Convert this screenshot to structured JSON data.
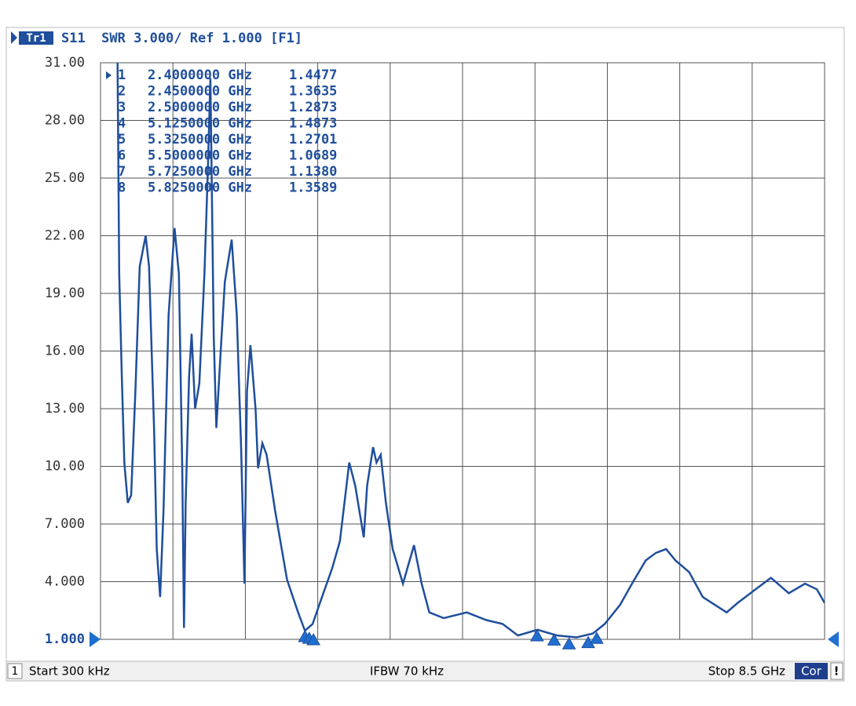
{
  "chart_data": {
    "type": "line",
    "header": {
      "trace": "Tr1",
      "text": "S11  SWR 3.000/ Ref 1.000 [F1]"
    },
    "footer": {
      "channel": "1",
      "start": "Start 300 kHz",
      "ifbw": "IFBW 70 kHz",
      "stop": "Stop 8.5 GHz",
      "cor": "Cor",
      "alert": "!"
    },
    "xlim": [
      0.0003,
      8.5
    ],
    "ylim": [
      1,
      31
    ],
    "yticks": [
      {
        "value": 1,
        "label": "1.000"
      },
      {
        "value": 4,
        "label": "4.000"
      },
      {
        "value": 7,
        "label": "7.000"
      },
      {
        "value": 10,
        "label": "10.00"
      },
      {
        "value": 13,
        "label": "13.00"
      },
      {
        "value": 16,
        "label": "16.00"
      },
      {
        "value": 19,
        "label": "19.00"
      },
      {
        "value": 22,
        "label": "22.00"
      },
      {
        "value": 25,
        "label": "25.00"
      },
      {
        "value": 28,
        "label": "28.00"
      },
      {
        "value": 31,
        "label": "31.00"
      }
    ],
    "grid": true,
    "color": "#1f4e9c",
    "series": [
      {
        "name": "S11",
        "color": "#1f4e9c",
        "x": [
          0.2,
          0.22,
          0.25,
          0.28,
          0.32,
          0.36,
          0.41,
          0.46,
          0.53,
          0.57,
          0.63,
          0.66,
          0.7,
          0.74,
          0.8,
          0.87,
          0.92,
          0.96,
          0.98,
          1.0,
          1.04,
          1.07,
          1.11,
          1.16,
          1.22,
          1.26,
          1.29,
          1.33,
          1.36,
          1.41,
          1.46,
          1.54,
          1.6,
          1.65,
          1.69,
          1.72,
          1.76,
          1.82,
          1.85,
          1.9,
          1.95,
          2.05,
          2.19,
          2.32,
          2.4,
          2.49,
          2.6,
          2.72,
          2.81,
          2.92,
          2.99,
          3.09,
          3.13,
          3.2,
          3.24,
          3.29,
          3.35,
          3.43,
          3.55,
          3.68,
          3.77,
          3.86,
          4.03,
          4.3,
          4.53,
          4.72,
          4.9,
          5.13,
          5.36,
          5.59,
          5.78,
          5.92,
          6.1,
          6.24,
          6.4,
          6.52,
          6.64,
          6.75,
          6.91,
          7.07,
          7.21,
          7.35,
          7.48,
          7.69,
          7.87,
          8.08,
          8.27,
          8.41,
          8.5
        ],
        "values": [
          31,
          20.0,
          14.7,
          10.2,
          8.1,
          8.5,
          13.9,
          20.4,
          22.0,
          20.4,
          11.8,
          5.7,
          3.2,
          7.7,
          17.9,
          22.4,
          20.0,
          9.8,
          1.6,
          8.1,
          14.7,
          16.9,
          13.0,
          14.3,
          20.0,
          25.3,
          30.2,
          16.7,
          12.0,
          15.9,
          19.6,
          21.8,
          17.9,
          11.0,
          3.9,
          13.9,
          16.3,
          13.0,
          9.9,
          11.2,
          10.6,
          7.7,
          4.1,
          2.4,
          1.45,
          1.8,
          3.2,
          4.7,
          6.1,
          10.2,
          9.0,
          6.3,
          9.0,
          11.0,
          10.2,
          10.6,
          8.1,
          5.7,
          3.9,
          5.9,
          3.9,
          2.4,
          2.1,
          2.4,
          2.0,
          1.8,
          1.2,
          1.5,
          1.2,
          1.1,
          1.3,
          1.8,
          2.8,
          3.9,
          5.1,
          5.5,
          5.7,
          5.1,
          4.5,
          3.2,
          2.8,
          2.4,
          2.9,
          3.6,
          4.2,
          3.4,
          3.9,
          3.6,
          2.9
        ]
      }
    ],
    "markers": [
      {
        "name": "1",
        "x": 2.4,
        "x_label": "2.4000000 GHz",
        "value": 1.4477
      },
      {
        "name": "2",
        "x": 2.45,
        "x_label": "2.4500000 GHz",
        "value": 1.3635
      },
      {
        "name": "3",
        "x": 2.5,
        "x_label": "2.5000000 GHz",
        "value": 1.2873
      },
      {
        "name": "4",
        "x": 5.125,
        "x_label": "5.1250000 GHz",
        "value": 1.4873
      },
      {
        "name": "5",
        "x": 5.325,
        "x_label": "5.3250000 GHz",
        "value": 1.2701
      },
      {
        "name": "6",
        "x": 5.5,
        "x_label": "5.5000000 GHz",
        "value": 1.0689
      },
      {
        "name": "7",
        "x": 5.725,
        "x_label": "5.7250000 GHz",
        "value": 1.138,
        "value_label": "1.1380"
      },
      {
        "name": "8",
        "x": 5.825,
        "x_label": "5.8250000 GHz",
        "value": 1.3589
      }
    ]
  }
}
